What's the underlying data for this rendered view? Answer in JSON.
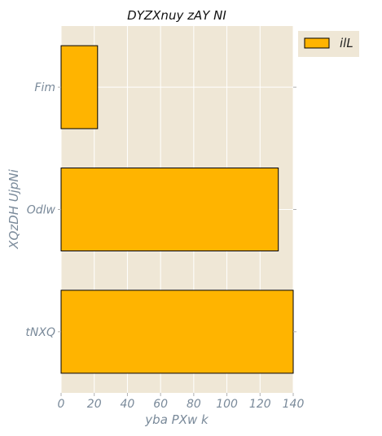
{
  "chart_data": {
    "type": "bar",
    "orientation": "horizontal",
    "title": "DYZXnuy zAY NI",
    "xlabel": "yba  PXw k",
    "ylabel": "XQzDH UjpNi",
    "categories": [
      "Fim",
      "Odlw",
      "tNXQ"
    ],
    "series": [
      {
        "name": "ilL",
        "values": [
          22,
          131,
          140
        ]
      }
    ],
    "xlim": [
      0,
      140
    ],
    "xticks": [
      "0",
      "20",
      "40",
      "60",
      "80",
      "100",
      "120",
      "140"
    ],
    "grid": true,
    "legend": "top-right",
    "colors": {
      "bar": "#FFB400",
      "background": "#EFE7D6",
      "grid": "#FFFFFF",
      "edge": "#000000"
    }
  }
}
